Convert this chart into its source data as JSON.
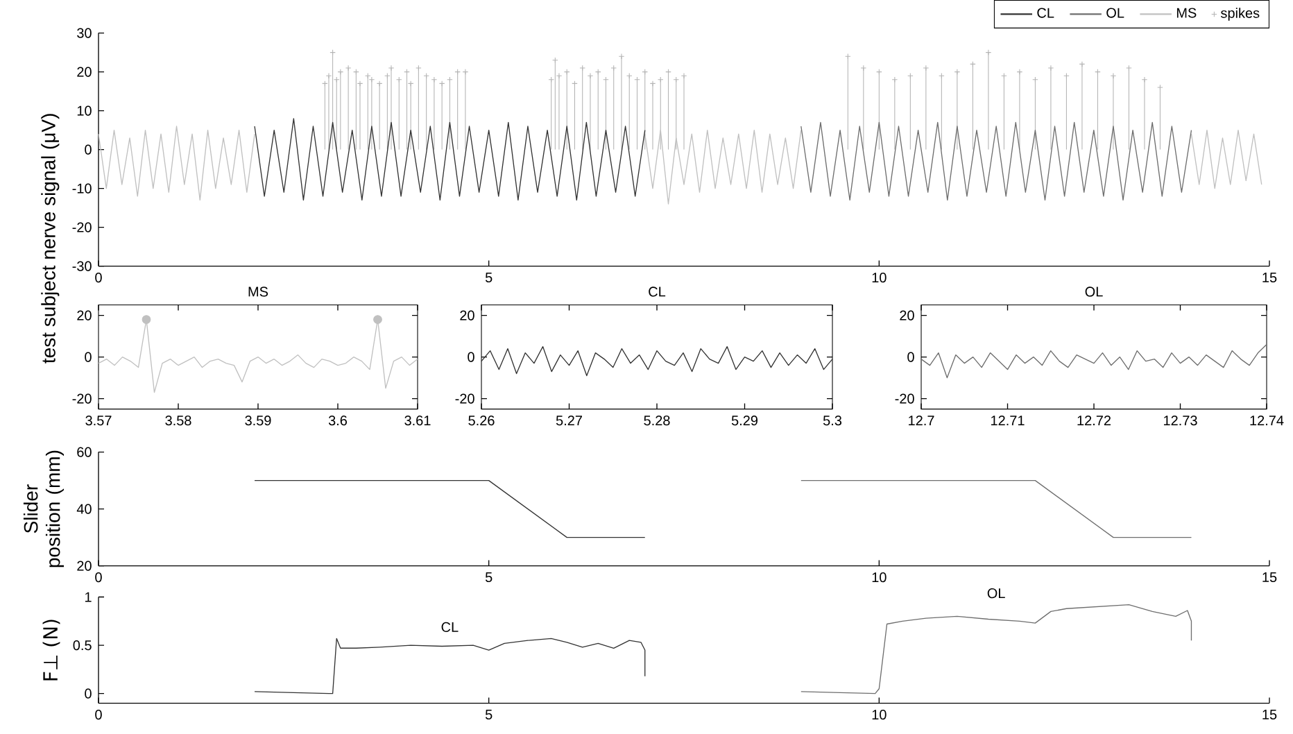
{
  "chart_data": [
    {
      "type": "line",
      "ylabel": "test subject nerve signal (μV)",
      "xlim": [
        0,
        15
      ],
      "ylim": [
        -30,
        30
      ],
      "xticks": [
        0,
        5,
        10,
        15
      ],
      "yticks": [
        -30,
        -20,
        -10,
        0,
        10,
        20,
        30
      ],
      "legend": "top right",
      "line_style": "solid",
      "series": [
        {
          "name": "CL",
          "color": "#333333",
          "x": [
            2,
            2.125,
            2.25,
            2.375,
            2.5,
            2.625,
            2.75,
            2.875,
            3,
            3.125,
            3.25,
            3.375,
            3.5,
            3.625,
            3.75,
            3.875,
            4,
            4.125,
            4.25,
            4.375,
            4.5,
            4.625,
            4.75,
            4.875,
            5,
            5.125,
            5.25,
            5.375,
            5.5,
            5.625,
            5.75,
            5.875,
            6,
            6.125,
            6.25,
            6.375,
            6.5,
            6.625,
            6.75,
            6.875,
            7
          ],
          "values": [
            6,
            -12,
            5,
            -11,
            8,
            -13,
            6,
            -12,
            7,
            -11,
            5,
            -13,
            6,
            -12,
            7,
            -12,
            5,
            -11,
            6,
            -13,
            7,
            -12,
            6,
            -11,
            5,
            -12,
            7,
            -13,
            6,
            -11,
            5,
            -12,
            6,
            -13,
            7,
            -12,
            5,
            -11,
            6,
            -12,
            5
          ]
        },
        {
          "name": "OL",
          "color": "#6e6e6e",
          "x": [
            9,
            9.125,
            9.25,
            9.375,
            9.5,
            9.625,
            9.75,
            9.875,
            10,
            10.125,
            10.25,
            10.375,
            10.5,
            10.625,
            10.75,
            10.875,
            11,
            11.125,
            11.25,
            11.375,
            11.5,
            11.625,
            11.75,
            11.875,
            12,
            12.125,
            12.25,
            12.375,
            12.5,
            12.625,
            12.75,
            12.875,
            13,
            13.125,
            13.25,
            13.375,
            13.5,
            13.625,
            13.75,
            13.875,
            14
          ],
          "values": [
            6,
            -11,
            7,
            -12,
            5,
            -13,
            6,
            -11,
            7,
            -12,
            6,
            -12,
            5,
            -11,
            7,
            -13,
            6,
            -12,
            5,
            -11,
            6,
            -12,
            7,
            -11,
            5,
            -13,
            6,
            -12,
            7,
            -11,
            5,
            -12,
            6,
            -13,
            5,
            -11,
            7,
            -12,
            6,
            -11,
            5
          ]
        },
        {
          "name": "MS",
          "color": "#c0c0c0",
          "x": [
            0,
            0.1,
            0.2,
            0.3,
            0.4,
            0.5,
            0.6,
            0.7,
            0.8,
            0.9,
            1,
            1.1,
            1.2,
            1.3,
            1.4,
            1.5,
            1.6,
            1.7,
            1.8,
            1.9,
            2,
            2.05,
            7,
            7.1,
            7.2,
            7.3,
            7.4,
            7.5,
            7.6,
            7.7,
            7.8,
            7.9,
            8,
            8.1,
            8.2,
            8.3,
            8.4,
            8.5,
            8.6,
            8.7,
            8.8,
            8.9,
            9,
            9.05,
            14,
            14.1,
            14.2,
            14.3,
            14.4,
            14.5,
            14.6,
            14.7,
            14.8,
            14.9
          ],
          "values": [
            4,
            -10,
            5,
            -9,
            3,
            -12,
            5,
            -10,
            4,
            -11,
            6,
            -9,
            4,
            -13,
            5,
            -10,
            3,
            -9,
            5,
            -11,
            4,
            null,
            4,
            -10,
            5,
            -14,
            3,
            -9,
            4,
            -11,
            5,
            -10,
            3,
            -9,
            4,
            -10,
            5,
            -11,
            4,
            -9,
            3,
            -10,
            5,
            null,
            4,
            -9,
            5,
            -10,
            3,
            -9,
            5,
            -8,
            4,
            -9
          ]
        },
        {
          "name": "spikes",
          "type": "lollipop",
          "marker": "cross",
          "color": "#b4b4b4",
          "x": [
            2.9,
            2.95,
            3,
            3.05,
            3.1,
            3.2,
            3.3,
            3.35,
            3.45,
            3.5,
            3.6,
            3.7,
            3.75,
            3.85,
            3.95,
            4,
            4.1,
            4.2,
            4.3,
            4.4,
            4.5,
            4.6,
            4.7,
            5.8,
            5.85,
            5.9,
            6,
            6.1,
            6.2,
            6.3,
            6.4,
            6.5,
            6.6,
            6.7,
            6.8,
            6.9,
            7,
            7.1,
            7.2,
            7.3,
            7.4,
            7.5,
            9.6,
            9.8,
            10,
            10.2,
            10.4,
            10.6,
            10.8,
            11,
            11.2,
            11.4,
            11.6,
            11.8,
            12,
            12.2,
            12.4,
            12.6,
            12.8,
            13,
            13.2,
            13.4,
            13.6
          ],
          "values": [
            17,
            19,
            25,
            18,
            20,
            21,
            20,
            17,
            19,
            18,
            17,
            19,
            21,
            18,
            20,
            17,
            21,
            19,
            18,
            17,
            18,
            20,
            20,
            18,
            23,
            19,
            20,
            17,
            21,
            19,
            20,
            18,
            21,
            24,
            19,
            18,
            20,
            17,
            18,
            20,
            18,
            19,
            24,
            21,
            20,
            18,
            19,
            21,
            19,
            20,
            22,
            25,
            19,
            20,
            18,
            21,
            19,
            22,
            20,
            19,
            21,
            18,
            16
          ]
        }
      ]
    },
    {
      "type": "line",
      "title": "MS",
      "xlim": [
        3.57,
        3.61
      ],
      "ylim": [
        -25,
        25
      ],
      "xticks": [
        3.57,
        3.58,
        3.59,
        3.6,
        3.61
      ],
      "yticks": [
        -20,
        0,
        20
      ],
      "x": [
        3.57,
        3.571,
        3.572,
        3.573,
        3.574,
        3.575,
        3.576,
        3.577,
        3.578,
        3.579,
        3.58,
        3.581,
        3.582,
        3.583,
        3.584,
        3.585,
        3.586,
        3.587,
        3.588,
        3.589,
        3.59,
        3.591,
        3.592,
        3.593,
        3.594,
        3.595,
        3.596,
        3.597,
        3.598,
        3.599,
        3.6,
        3.601,
        3.602,
        3.603,
        3.604,
        3.605,
        3.606,
        3.607,
        3.608,
        3.609,
        3.61
      ],
      "series": [
        {
          "color": "#c0c0c0",
          "values": [
            -3,
            -1,
            -4,
            0,
            -2,
            -5,
            18,
            -17,
            -3,
            -1,
            -4,
            -2,
            0,
            -5,
            -2,
            -1,
            -3,
            -4,
            -12,
            -2,
            0,
            -3,
            -1,
            -4,
            -2,
            1,
            -3,
            -5,
            -1,
            -2,
            -4,
            -3,
            0,
            -2,
            -6,
            18,
            -15,
            -2,
            0,
            -4,
            -1
          ]
        },
        {
          "type": "scatter",
          "marker": "circle",
          "color": "#c0c0c0",
          "x": [
            3.576,
            3.605
          ],
          "values": [
            18,
            18
          ]
        }
      ]
    },
    {
      "type": "line",
      "title": "CL",
      "xlim": [
        5.26,
        5.3
      ],
      "ylim": [
        -25,
        25
      ],
      "xticks": [
        5.26,
        5.27,
        5.28,
        5.29,
        5.3
      ],
      "yticks": [
        -20,
        0,
        20
      ],
      "x": [
        5.26,
        5.261,
        5.262,
        5.263,
        5.264,
        5.265,
        5.266,
        5.267,
        5.268,
        5.269,
        5.27,
        5.271,
        5.272,
        5.273,
        5.274,
        5.275,
        5.276,
        5.277,
        5.278,
        5.279,
        5.28,
        5.281,
        5.282,
        5.283,
        5.284,
        5.285,
        5.286,
        5.287,
        5.288,
        5.289,
        5.29,
        5.291,
        5.292,
        5.293,
        5.294,
        5.295,
        5.296,
        5.297,
        5.298,
        5.299,
        5.3
      ],
      "series": [
        {
          "color": "#333333",
          "values": [
            -2,
            3,
            -6,
            4,
            -8,
            2,
            -3,
            5,
            -7,
            1,
            -4,
            3,
            -9,
            2,
            -1,
            -5,
            4,
            -3,
            1,
            -6,
            3,
            -2,
            -4,
            2,
            -7,
            4,
            -1,
            -3,
            5,
            -6,
            0,
            -2,
            3,
            -5,
            2,
            -4,
            1,
            -3,
            4,
            -6,
            -1
          ]
        }
      ]
    },
    {
      "type": "line",
      "title": "OL",
      "xlim": [
        12.7,
        12.74
      ],
      "ylim": [
        -25,
        25
      ],
      "xticks": [
        12.7,
        12.71,
        12.72,
        12.73,
        12.74
      ],
      "yticks": [
        -20,
        0,
        20
      ],
      "x": [
        12.7,
        12.701,
        12.702,
        12.703,
        12.704,
        12.705,
        12.706,
        12.707,
        12.708,
        12.709,
        12.71,
        12.711,
        12.712,
        12.713,
        12.714,
        12.715,
        12.716,
        12.717,
        12.718,
        12.719,
        12.72,
        12.721,
        12.722,
        12.723,
        12.724,
        12.725,
        12.726,
        12.727,
        12.728,
        12.729,
        12.73,
        12.731,
        12.732,
        12.733,
        12.734,
        12.735,
        12.736,
        12.737,
        12.738,
        12.739,
        12.74
      ],
      "series": [
        {
          "color": "#6e6e6e",
          "values": [
            -1,
            -4,
            2,
            -10,
            1,
            -3,
            0,
            -5,
            2,
            -2,
            -6,
            1,
            -3,
            0,
            -4,
            3,
            -2,
            -5,
            1,
            -1,
            -3,
            2,
            -4,
            0,
            -6,
            3,
            -2,
            -1,
            -5,
            2,
            -3,
            0,
            -4,
            1,
            -2,
            -5,
            3,
            -1,
            -4,
            2,
            6
          ]
        }
      ]
    },
    {
      "type": "line",
      "ylabel": "Slider position (mm)",
      "xlim": [
        0,
        15
      ],
      "ylim": [
        20,
        60
      ],
      "xticks": [
        0,
        5,
        10,
        15
      ],
      "yticks": [
        20,
        40,
        60
      ],
      "series": [
        {
          "color": "#333333",
          "x": [
            2,
            5,
            6,
            7
          ],
          "values": [
            50,
            50,
            30,
            30
          ]
        },
        {
          "color": "#6e6e6e",
          "x": [
            9,
            12,
            13,
            14
          ],
          "values": [
            50,
            50,
            30,
            30
          ]
        }
      ]
    },
    {
      "type": "line",
      "ylabel": "F⊥ (N)",
      "xlim": [
        0,
        15
      ],
      "ylim": [
        -0.1,
        1
      ],
      "xticks": [
        0,
        5,
        10,
        15
      ],
      "yticks": [
        0,
        0.5,
        1
      ],
      "annotations": [
        "CL",
        "OL"
      ],
      "series": [
        {
          "color": "#333333",
          "x": [
            2,
            2.5,
            2.95,
            3,
            3.05,
            3.1,
            3.3,
            3.6,
            4,
            4.4,
            4.8,
            5,
            5.2,
            5.5,
            5.8,
            6,
            6.2,
            6.4,
            6.6,
            6.8,
            6.95,
            7,
            7
          ],
          "values": [
            0.02,
            0.01,
            0,
            0,
            0.57,
            0.47,
            0.47,
            0.48,
            0.5,
            0.49,
            0.5,
            0.45,
            0.52,
            0.55,
            0.57,
            0.53,
            0.48,
            0.52,
            0.47,
            0.55,
            0.53,
            0.45,
            0.18
          ]
        },
        {
          "color": "#6e6e6e",
          "x": [
            9,
            9.5,
            9.95,
            10,
            10.1,
            10.3,
            10.6,
            11,
            11.4,
            11.8,
            12,
            12.2,
            12.4,
            12.8,
            13.2,
            13.5,
            13.8,
            13.95,
            14,
            14
          ],
          "values": [
            0.02,
            0.01,
            0,
            0.05,
            0.72,
            0.75,
            0.78,
            0.8,
            0.77,
            0.75,
            0.73,
            0.85,
            0.88,
            0.9,
            0.92,
            0.85,
            0.8,
            0.86,
            0.75,
            0.55
          ]
        }
      ]
    }
  ]
}
